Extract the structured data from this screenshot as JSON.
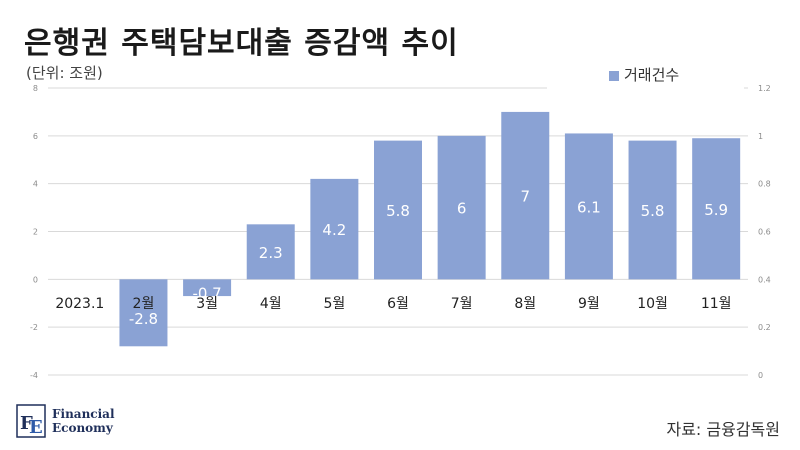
{
  "title": "은행권 주택담보대출 증감액 추이",
  "unit_label": "(단위: 조원)",
  "source": "자료: 금융감독원",
  "logo": {
    "line1": "Financial",
    "line2": "Economy",
    "mark": "FE"
  },
  "colors": {
    "bar": "#8aa2d4",
    "grid": "#d9d9d9",
    "axis_text": "#8c8c8c"
  },
  "chart_data": {
    "type": "bar",
    "categories": [
      "2023.1",
      "2월",
      "3월",
      "4월",
      "5월",
      "6월",
      "7월",
      "8월",
      "9월",
      "10월",
      "11월"
    ],
    "series": [
      {
        "name": "거래건수",
        "values": [
          0,
          -2.8,
          -0.7,
          2.3,
          4.2,
          5.8,
          6,
          7,
          6.1,
          5.8,
          5.9
        ]
      }
    ],
    "data_labels": [
      "0",
      "-2.8",
      "-0.7",
      "2.3",
      "4.2",
      "5.8",
      "6",
      "7",
      "6.1",
      "5.8",
      "5.9"
    ],
    "y_left": {
      "ylim": [
        -4,
        8
      ],
      "ticks": [
        "8",
        "6",
        "4",
        "2",
        "0",
        "-2",
        "-4"
      ]
    },
    "y_right": {
      "ylim": [
        0,
        1.2
      ],
      "ticks": [
        "1.2",
        "1",
        "0.8",
        "0.6",
        "0.4",
        "0.2",
        "0"
      ]
    },
    "legend": "top-right",
    "grid": true
  }
}
